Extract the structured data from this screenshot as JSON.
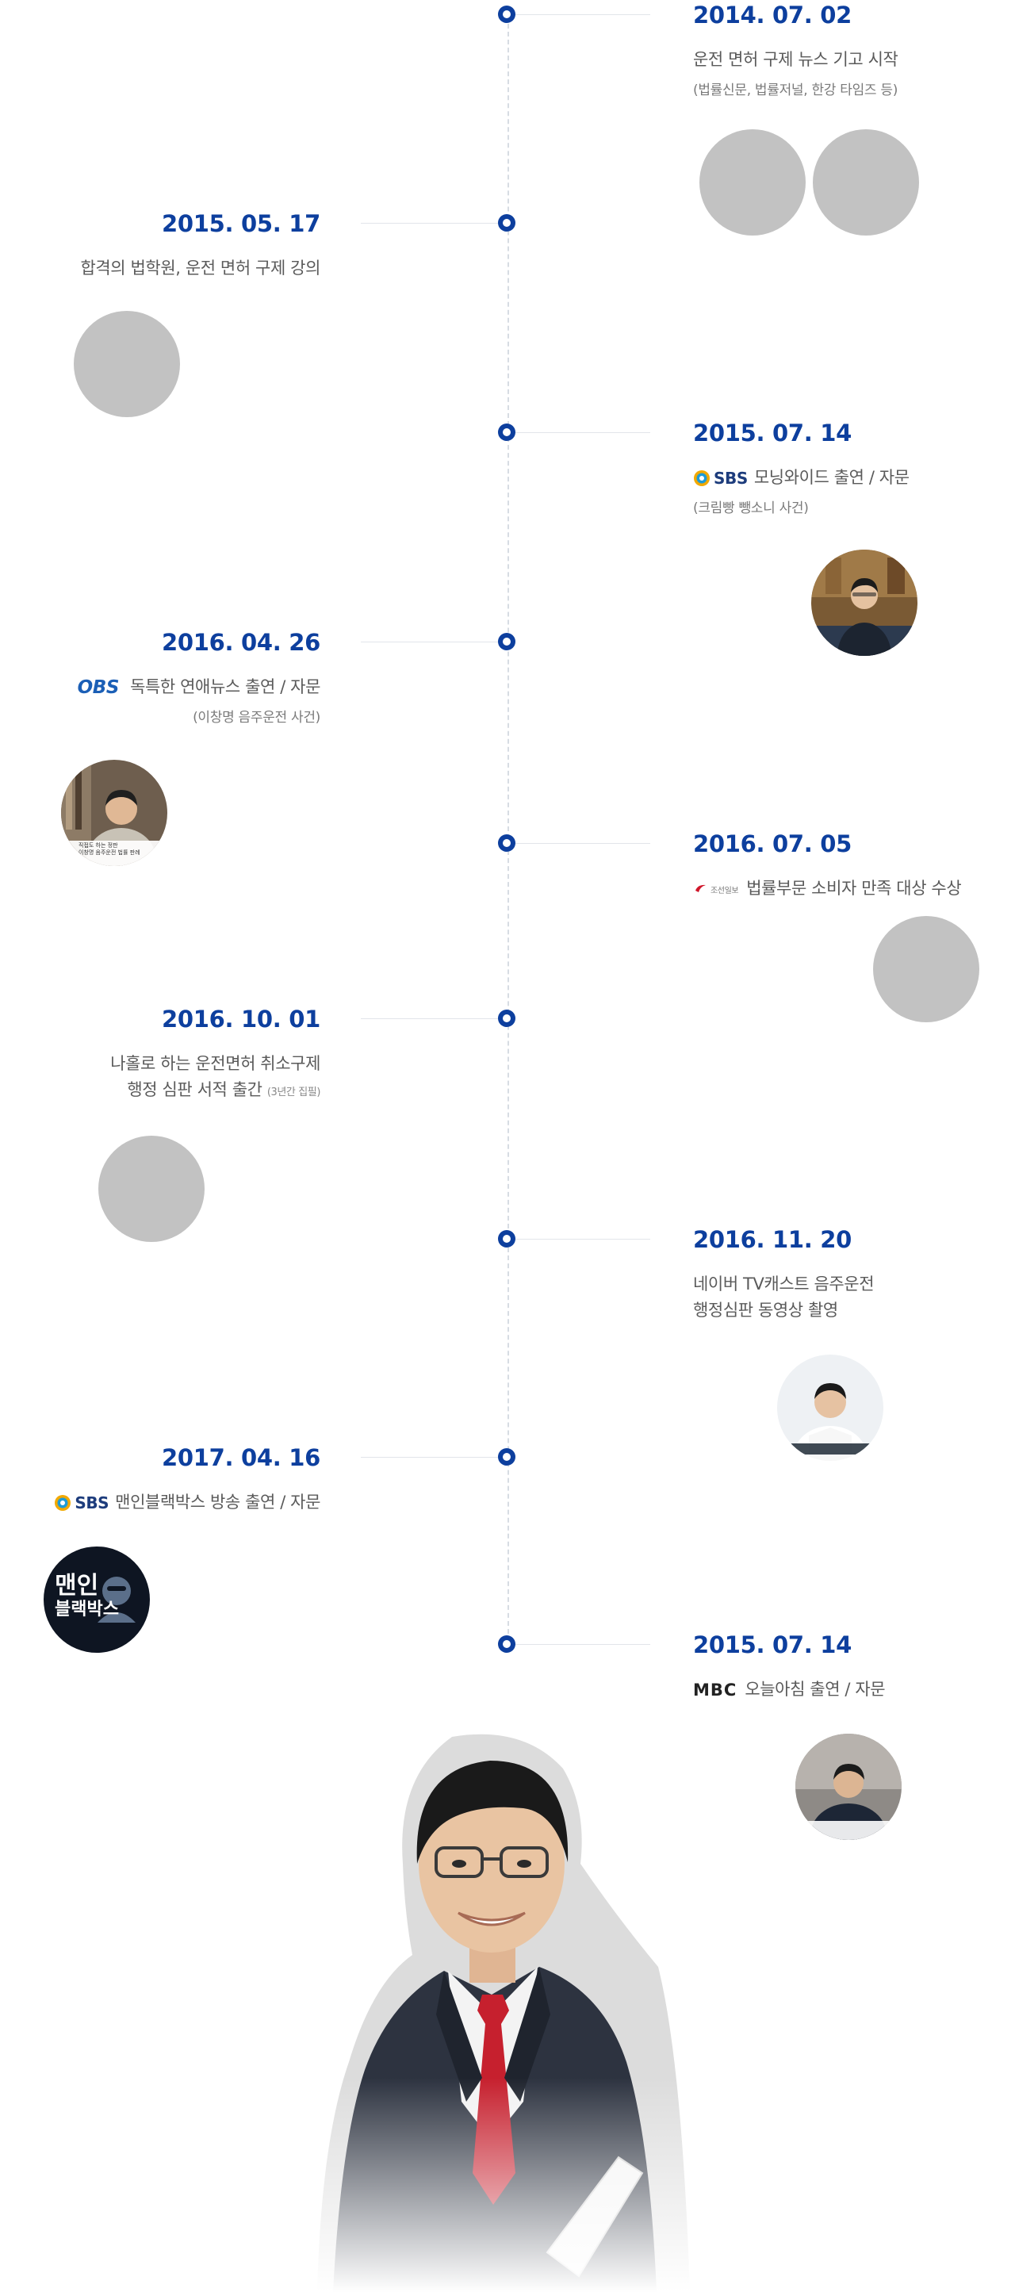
{
  "timeline": [
    {
      "side": "right",
      "date": "2014. 07. 02",
      "lines": [
        "운전 면허 구제 뉴스 기고 시작"
      ],
      "sub": "(법률신문, 법률저널, 한강 타임즈 등)"
    },
    {
      "side": "left",
      "date": "2015. 05. 17",
      "lines": [
        "합격의 법학원, 운전 면허 구제 강의"
      ]
    },
    {
      "side": "right",
      "date": "2015. 07. 14",
      "logo": "SBS",
      "lines": [
        "모닝와이드 출연 / 자문"
      ],
      "sub": "(크림빵 뺑소니 사건)"
    },
    {
      "side": "left",
      "date": "2016. 04. 26",
      "logo": "OBS",
      "lines": [
        "독특한 연애뉴스 출연 / 자문"
      ],
      "sub": "(이창명 음주운전 사건)",
      "thumb_caption": [
        "직접도 하는 정판",
        "이창명 음주운전 법률 판례"
      ]
    },
    {
      "side": "right",
      "date": "2016. 07. 05",
      "logo": "조선일보",
      "lines": [
        "법률부문 소비자 만족 대상 수상"
      ]
    },
    {
      "side": "left",
      "date": "2016. 10. 01",
      "lines": [
        "나홀로 하는 운전면허  취소구제",
        "행정 심판 서적 출간"
      ],
      "note": "(3년간 집필)"
    },
    {
      "side": "right",
      "date": "2016. 11. 20",
      "lines": [
        "네이버 TV캐스트 음주운전",
        "행정심판 동영상 촬영"
      ]
    },
    {
      "side": "left",
      "date": "2017. 04. 16",
      "logo": "SBS",
      "lines": [
        "맨인블랙박스 방송 출연 / 자문"
      ],
      "program_logo": [
        "맨인",
        "블랙박스"
      ]
    },
    {
      "side": "right",
      "date": "2015. 07. 14",
      "logo": "MBC",
      "lines": [
        "오늘아침 출연 / 자문"
      ]
    }
  ],
  "colors": {
    "accent": "#0d3f9e",
    "placeholder": "#c2c2c2",
    "axis": "#d7dce3"
  }
}
